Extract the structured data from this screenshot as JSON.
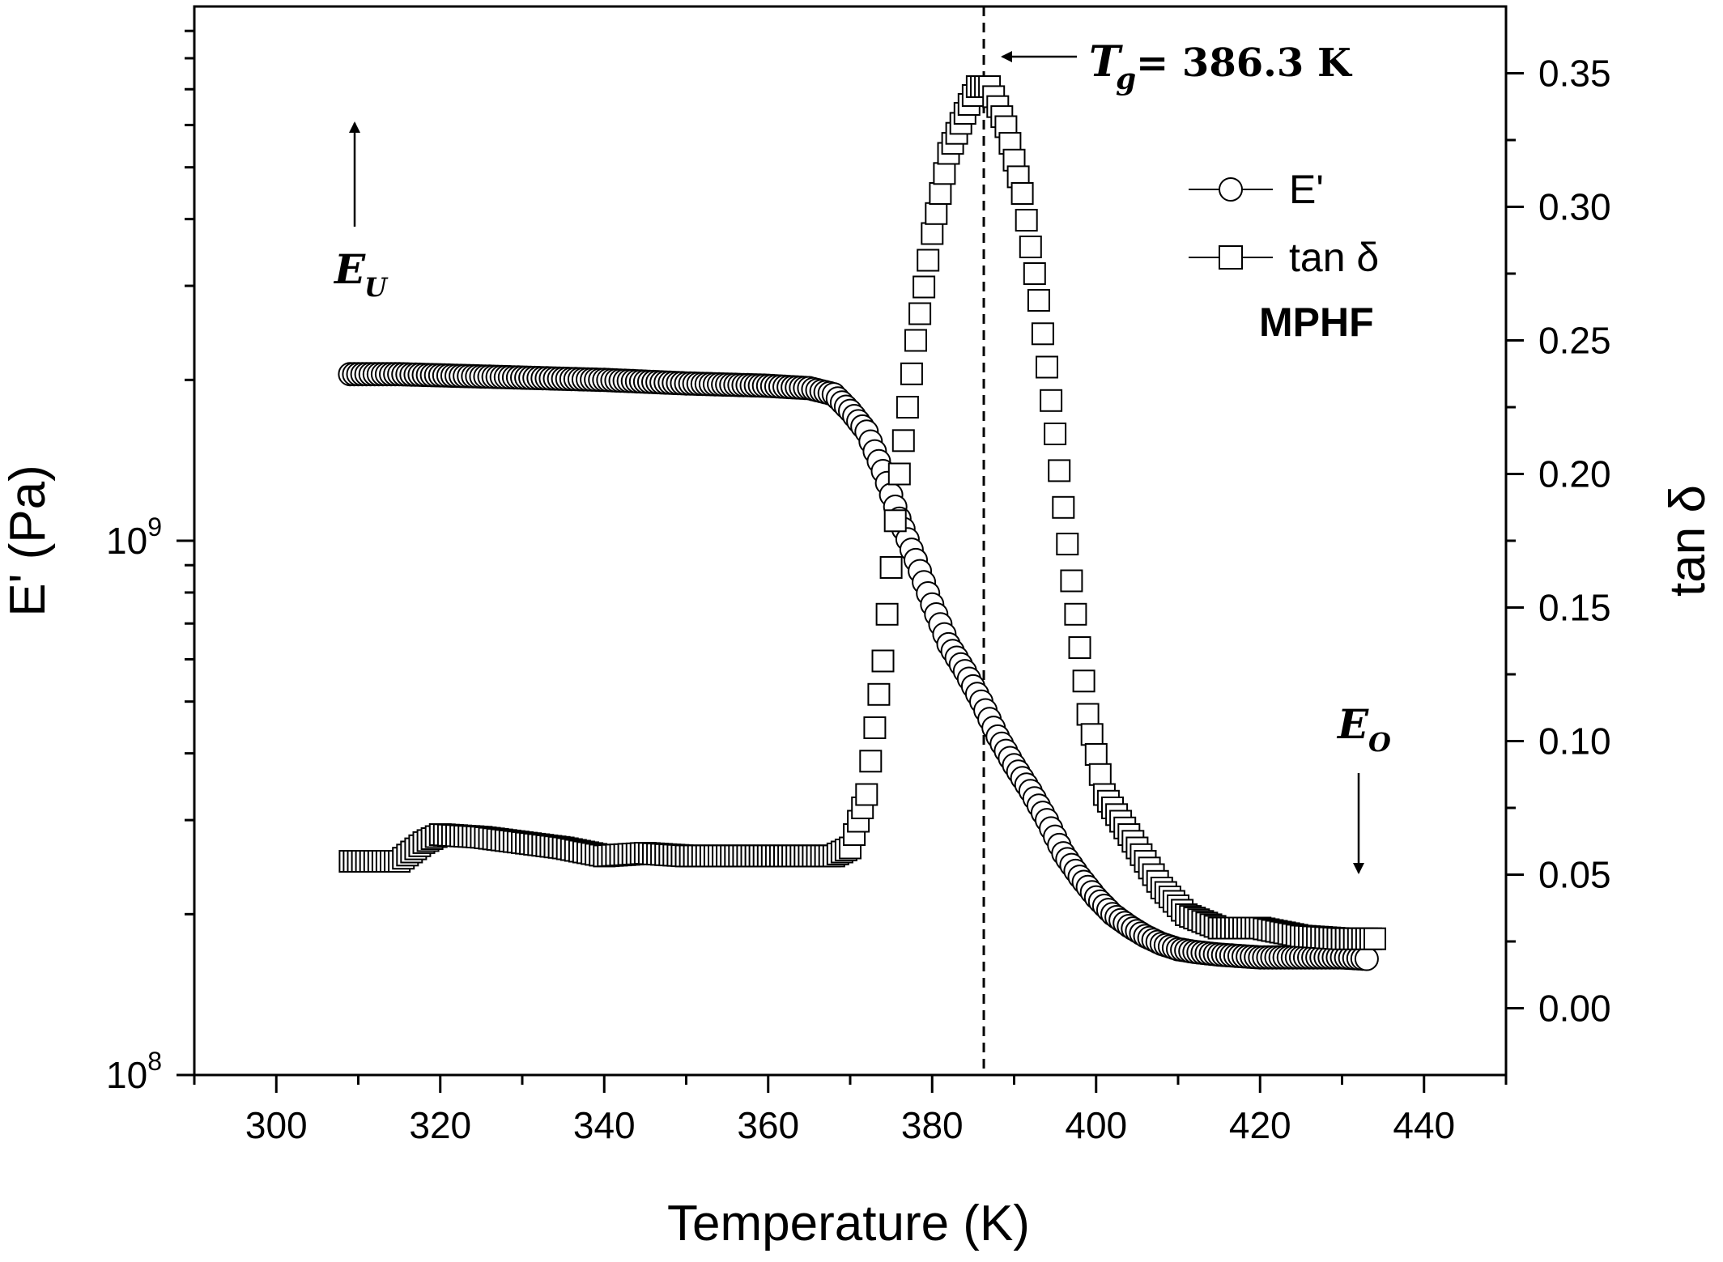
{
  "chart_data": {
    "type": "scatter",
    "xlabel": "Temperature (K)",
    "ylabel_left": "E' (Pa)",
    "ylabel_right": "tan δ",
    "xlim": [
      290,
      450
    ],
    "x_ticks": [
      300,
      320,
      340,
      360,
      380,
      400,
      420,
      440
    ],
    "y_left_scale": "log",
    "y_left_lim": [
      100000000.0,
      10000000000.0
    ],
    "y_left_ticks": [
      {
        "value": 100000000.0,
        "base": "10",
        "exp": "8"
      },
      {
        "value": 1000000000.0,
        "base": "10",
        "exp": "9"
      }
    ],
    "y_right_lim": [
      -0.025,
      0.375
    ],
    "y_right_ticks": [
      "0.00",
      "0.05",
      "0.10",
      "0.15",
      "0.20",
      "0.25",
      "0.30",
      "0.35"
    ],
    "legend": {
      "position": "top-right",
      "entries": [
        "E'",
        "tan δ"
      ]
    },
    "sample_label": "MPHF",
    "series": [
      {
        "name": "E'",
        "marker": "circle",
        "axis": "left",
        "x": [
          309,
          315,
          320,
          330,
          340,
          350,
          360,
          365,
          368,
          370,
          372,
          374,
          376,
          378,
          380,
          382,
          384,
          386,
          388,
          390,
          392,
          394,
          396,
          398,
          400,
          402,
          404,
          406,
          408,
          410,
          412,
          415,
          420,
          425,
          430,
          433
        ],
        "y": [
          2050000000.0,
          2050000000.0,
          2040000000.0,
          2020000000.0,
          2000000000.0,
          1970000000.0,
          1950000000.0,
          1930000000.0,
          1880000000.0,
          1750000000.0,
          1600000000.0,
          1350000000.0,
          1100000000.0,
          920000000.0,
          760000000.0,
          640000000.0,
          570000000.0,
          500000000.0,
          430000000.0,
          380000000.0,
          340000000.0,
          300000000.0,
          260000000.0,
          235000000.0,
          215000000.0,
          200000000.0,
          190000000.0,
          182000000.0,
          176000000.0,
          172000000.0,
          170000000.0,
          168000000.0,
          166000000.0,
          166000000.0,
          166000000.0,
          165000000.0
        ]
      },
      {
        "name": "tan δ",
        "marker": "square",
        "axis": "right",
        "x": [
          309,
          315,
          318,
          320,
          325,
          330,
          335,
          340,
          345,
          350,
          360,
          368,
          370,
          372,
          374,
          376,
          378,
          380,
          382,
          384,
          385.5,
          387,
          389,
          391,
          393,
          395,
          397,
          399,
          401,
          403,
          405,
          408,
          411,
          415,
          420,
          425,
          430,
          434
        ],
        "y": [
          0.055,
          0.055,
          0.062,
          0.065,
          0.064,
          0.062,
          0.06,
          0.057,
          0.058,
          0.057,
          0.057,
          0.057,
          0.06,
          0.08,
          0.13,
          0.2,
          0.25,
          0.29,
          0.32,
          0.335,
          0.345,
          0.345,
          0.33,
          0.305,
          0.265,
          0.215,
          0.16,
          0.11,
          0.08,
          0.07,
          0.06,
          0.045,
          0.035,
          0.03,
          0.03,
          0.027,
          0.026,
          0.026
        ]
      }
    ],
    "annotations": {
      "tg_value": 386.3,
      "tg_symbol": "T",
      "tg_subscript": "g",
      "tg_label": "= 386.3 K",
      "eu_symbol": "E",
      "eu_subscript": "U",
      "eo_symbol": "E",
      "eo_subscript": "O"
    }
  }
}
